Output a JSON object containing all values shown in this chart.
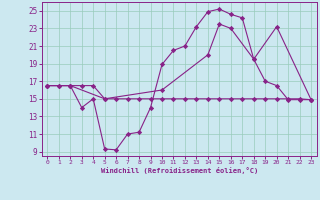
{
  "xlabel": "Windchill (Refroidissement éolien,°C)",
  "background_color": "#cce8f0",
  "grid_color": "#99ccbb",
  "line_color": "#882288",
  "xlim": [
    -0.5,
    23.5
  ],
  "ylim": [
    8.5,
    26.0
  ],
  "yticks": [
    9,
    11,
    13,
    15,
    17,
    19,
    21,
    23,
    25
  ],
  "xticks": [
    0,
    1,
    2,
    3,
    4,
    5,
    6,
    7,
    8,
    9,
    10,
    11,
    12,
    13,
    14,
    15,
    16,
    17,
    18,
    19,
    20,
    21,
    22,
    23
  ],
  "series1_x": [
    0,
    1,
    2,
    3,
    4,
    5,
    6,
    7,
    8,
    9,
    10,
    11,
    12,
    13,
    14,
    15,
    16,
    17,
    18,
    19,
    20,
    21,
    22,
    23
  ],
  "series1_y": [
    16.5,
    16.5,
    16.5,
    14.0,
    15.0,
    9.3,
    9.2,
    11.0,
    11.2,
    14.0,
    18.9,
    20.5,
    21.0,
    23.2,
    24.9,
    25.2,
    24.6,
    24.2,
    19.5,
    17.0,
    16.5,
    14.9,
    14.9,
    14.9
  ],
  "series2_x": [
    0,
    1,
    2,
    3,
    4,
    5,
    6,
    7,
    8,
    9,
    10,
    11,
    12,
    13,
    14,
    15,
    16,
    17,
    18,
    19,
    20,
    21,
    22,
    23
  ],
  "series2_y": [
    16.5,
    16.5,
    16.5,
    16.5,
    16.5,
    15.0,
    15.0,
    15.0,
    15.0,
    15.0,
    15.0,
    15.0,
    15.0,
    15.0,
    15.0,
    15.0,
    15.0,
    15.0,
    15.0,
    15.0,
    15.0,
    15.0,
    15.0,
    14.9
  ],
  "series3_x": [
    0,
    2,
    5,
    10,
    14,
    15,
    16,
    18,
    20,
    23
  ],
  "series3_y": [
    16.5,
    16.5,
    15.0,
    16.0,
    20.0,
    23.5,
    23.0,
    19.5,
    23.2,
    14.9
  ]
}
